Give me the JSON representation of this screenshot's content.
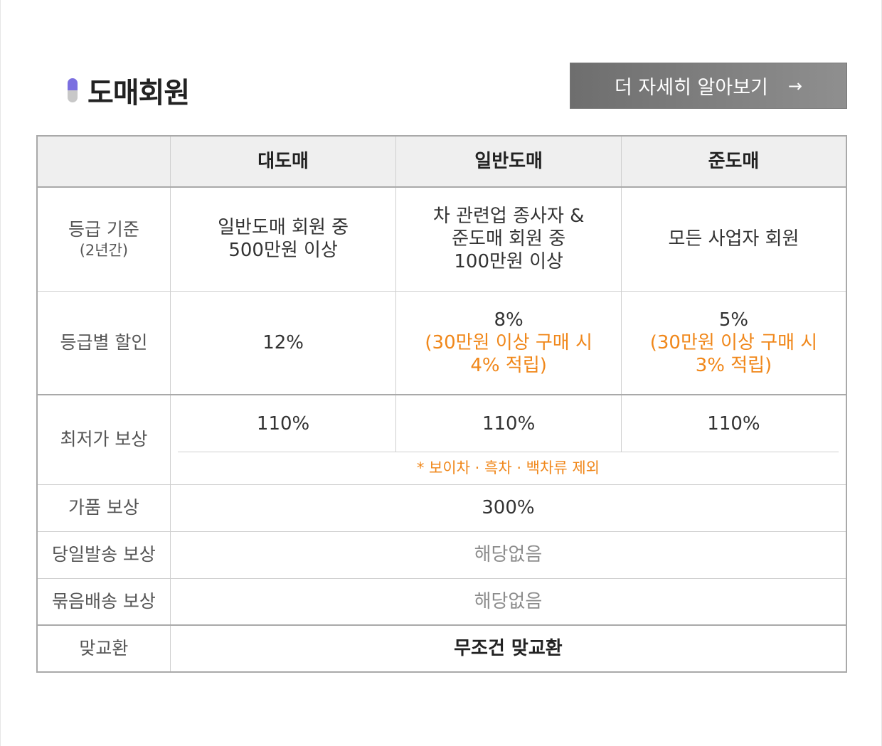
{
  "header": {
    "title": "도매회원",
    "more_button": "더 자세히 알아보기",
    "more_arrow": "→",
    "colors": {
      "pill_top": "#7b6fe0",
      "pill_bottom": "#c8c8c8",
      "button": "#7f7f7f",
      "accent": "#f0871a"
    }
  },
  "table": {
    "columns": [
      "",
      "대도매",
      "일반도매",
      "준도매"
    ],
    "grade_criteria": {
      "label": "등급 기준",
      "sub": "(2년간)",
      "values": [
        [
          "일반도매 회원 중",
          "500만원 이상"
        ],
        [
          "차 관련업 종사자 &",
          "준도매 회원 중",
          "100만원 이상"
        ],
        [
          "모든 사업자 회원"
        ]
      ]
    },
    "discount": {
      "label": "등급별 할인",
      "values": [
        {
          "main": "12%",
          "note": []
        },
        {
          "main": "8%",
          "note": [
            "(30만원 이상 구매 시",
            "4% 적립)"
          ]
        },
        {
          "main": "5%",
          "note": [
            "(30만원 이상 구매 시",
            "3% 적립)"
          ]
        }
      ]
    },
    "lowest_price": {
      "label": "최저가 보상",
      "values": [
        "110%",
        "110%",
        "110%"
      ],
      "note": "* 보이차 · 흑차 · 백차류 제외"
    },
    "counterfeit": {
      "label": "가품 보상",
      "value": "300%"
    },
    "same_day": {
      "label": "당일발송 보상",
      "value": "해당없음"
    },
    "bundle": {
      "label": "묶음배송 보상",
      "value": "해당없음"
    },
    "exchange": {
      "label": "맞교환",
      "value": "무조건 맞교환"
    }
  }
}
